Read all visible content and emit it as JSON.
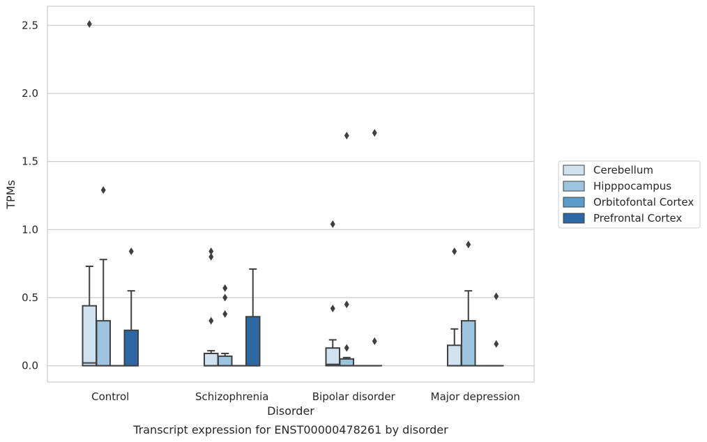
{
  "chart_data": {
    "type": "box",
    "title": "",
    "caption": "Transcript expression for ENST00000478261 by disorder",
    "xlabel": "Disorder",
    "ylabel": "TPMs",
    "ylim": [
      -0.12,
      2.64
    ],
    "yticks": [
      "0.0",
      "0.5",
      "1.0",
      "1.5",
      "2.0",
      "2.5"
    ],
    "grid": "horizontal",
    "legend_position": "right",
    "categories": [
      "Control",
      "Schizophrenia",
      "Bipolar disorder",
      "Major depression"
    ],
    "series": [
      {
        "name": "Cerebellum",
        "color": "#d0e1f0",
        "boxes": [
          {
            "q1": 0.0,
            "median": 0.02,
            "q3": 0.44,
            "whisker_low": 0.0,
            "whisker_high": 0.73,
            "outliers": [
              2.51
            ]
          },
          {
            "q1": 0.0,
            "median": 0.0,
            "q3": 0.09,
            "whisker_low": 0.0,
            "whisker_high": 0.11,
            "outliers": [
              0.33,
              0.8,
              0.84
            ]
          },
          {
            "q1": 0.0,
            "median": 0.01,
            "q3": 0.13,
            "whisker_low": 0.0,
            "whisker_high": 0.19,
            "outliers": [
              0.42,
              1.04
            ]
          },
          {
            "q1": 0.0,
            "median": 0.0,
            "q3": 0.15,
            "whisker_low": 0.0,
            "whisker_high": 0.27,
            "outliers": [
              0.84
            ]
          }
        ]
      },
      {
        "name": "Hipppocampus",
        "color": "#9dc4de",
        "boxes": [
          {
            "q1": 0.0,
            "median": 0.0,
            "q3": 0.33,
            "whisker_low": 0.0,
            "whisker_high": 0.78,
            "outliers": [
              1.29
            ]
          },
          {
            "q1": 0.0,
            "median": 0.0,
            "q3": 0.07,
            "whisker_low": 0.0,
            "whisker_high": 0.09,
            "outliers": [
              0.38,
              0.5,
              0.57
            ]
          },
          {
            "q1": 0.0,
            "median": 0.0,
            "q3": 0.05,
            "whisker_low": 0.0,
            "whisker_high": 0.06,
            "outliers": [
              0.13,
              0.45,
              1.69
            ]
          },
          {
            "q1": 0.0,
            "median": 0.0,
            "q3": 0.33,
            "whisker_low": 0.0,
            "whisker_high": 0.55,
            "outliers": [
              0.89
            ]
          }
        ]
      },
      {
        "name": "Orbitofontal Cortex",
        "color": "#5b9cc9",
        "boxes": [
          {
            "q1": 0.0,
            "median": 0.0,
            "q3": 0.0,
            "whisker_low": 0.0,
            "whisker_high": 0.0,
            "outliers": []
          },
          {
            "q1": 0.0,
            "median": 0.0,
            "q3": 0.0,
            "whisker_low": 0.0,
            "whisker_high": 0.0,
            "outliers": []
          },
          {
            "q1": 0.0,
            "median": 0.0,
            "q3": 0.0,
            "whisker_low": 0.0,
            "whisker_high": 0.0,
            "outliers": []
          },
          {
            "q1": 0.0,
            "median": 0.0,
            "q3": 0.0,
            "whisker_low": 0.0,
            "whisker_high": 0.0,
            "outliers": []
          }
        ]
      },
      {
        "name": "Prefrontal Cortex",
        "color": "#2d68a4",
        "boxes": [
          {
            "q1": 0.0,
            "median": 0.0,
            "q3": 0.26,
            "whisker_low": 0.0,
            "whisker_high": 0.55,
            "outliers": [
              0.84
            ]
          },
          {
            "q1": 0.0,
            "median": 0.0,
            "q3": 0.36,
            "whisker_low": 0.0,
            "whisker_high": 0.71,
            "outliers": []
          },
          {
            "q1": 0.0,
            "median": 0.0,
            "q3": 0.0,
            "whisker_low": 0.0,
            "whisker_high": 0.0,
            "outliers": [
              0.18,
              1.71
            ]
          },
          {
            "q1": 0.0,
            "median": 0.0,
            "q3": 0.0,
            "whisker_low": 0.0,
            "whisker_high": 0.0,
            "outliers": [
              0.16,
              0.51
            ]
          }
        ]
      }
    ]
  }
}
